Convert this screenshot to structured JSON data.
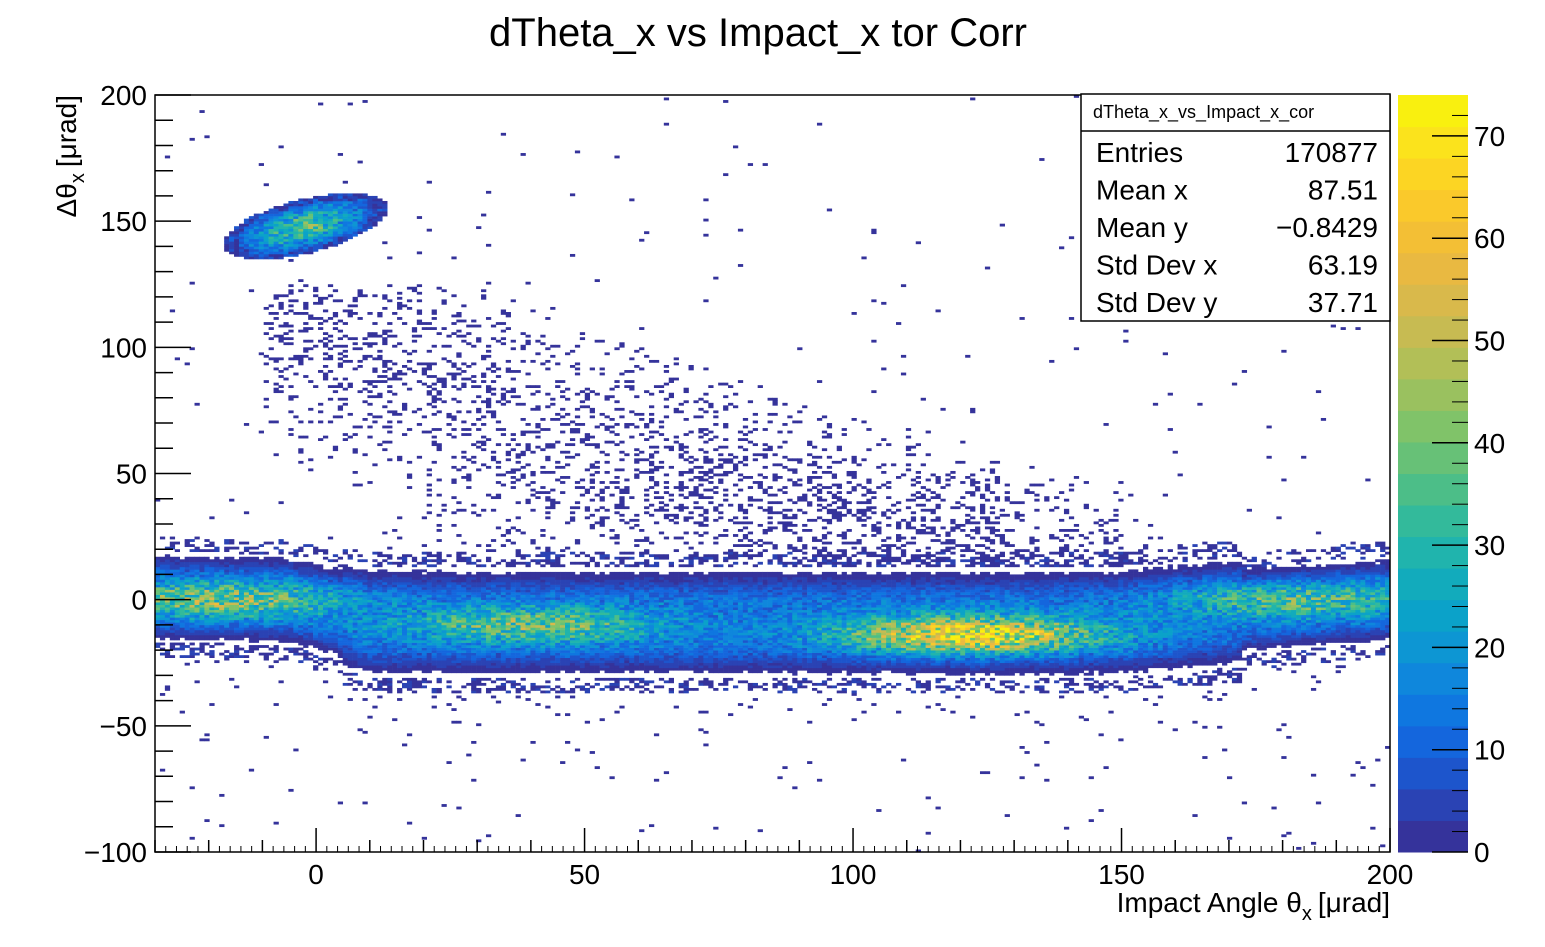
{
  "chart_data": {
    "type": "heatmap",
    "title": "dTheta_x vs Impact_x tor Corr",
    "xlabel": "Impact Angle θ",
    "xlabel_sub": "x",
    "xlabel_unit": "[μrad]",
    "ylabel": "Δθ",
    "ylabel_sub": "x",
    "ylabel_unit": "[μrad]",
    "xlim": [
      -30,
      200
    ],
    "ylim": [
      -100,
      200
    ],
    "zlim": [
      0,
      74
    ],
    "x_ticks": [
      "0",
      "50",
      "100",
      "150",
      "200"
    ],
    "x_tick_values": [
      0,
      50,
      100,
      150,
      200
    ],
    "y_ticks": [
      "−100",
      "−50",
      "0",
      "50",
      "100",
      "150",
      "200"
    ],
    "y_tick_values": [
      -100,
      -50,
      0,
      50,
      100,
      150,
      200
    ],
    "z_ticks": [
      "0",
      "10",
      "20",
      "30",
      "40",
      "50",
      "60",
      "70"
    ],
    "z_tick_values": [
      0,
      10,
      20,
      30,
      40,
      50,
      60,
      70
    ],
    "palette": [
      "#35339b",
      "#2a43b4",
      "#1d55cc",
      "#1466dd",
      "#0f77e0",
      "#0f87dc",
      "#0d96d3",
      "#0ba2c9",
      "#12abbc",
      "#20b4ad",
      "#33ba9b",
      "#4cbe88",
      "#67c177",
      "#80c369",
      "#9ac15f",
      "#b2bf57",
      "#c7bb52",
      "#d9b94b",
      "#e9b941",
      "#f3bf35",
      "#fac92b",
      "#fcd523",
      "#fbe31c",
      "#f9f00f"
    ],
    "stats": {
      "name": "dTheta_x_vs_Impact_x_cor",
      "rows": [
        {
          "label": "Entries",
          "value": "170877"
        },
        {
          "label": "Mean x",
          "value": "87.51"
        },
        {
          "label": "Mean y",
          "value": "−0.8429"
        },
        {
          "label": "Std Dev x",
          "value": "63.19"
        },
        {
          "label": "Std Dev y",
          "value": "37.71"
        }
      ]
    },
    "components": [
      {
        "kind": "band",
        "x_range": [
          -30,
          200
        ],
        "y_center": [
          [
            -30,
            1
          ],
          [
            -5,
            0
          ],
          [
            10,
            -9
          ],
          [
            150,
            -9
          ],
          [
            170,
            -5
          ],
          [
            200,
            0
          ]
        ],
        "y_sigma": 8.5,
        "peaks": [
          {
            "x": 122,
            "y": -14,
            "z": 62
          },
          {
            "x": -18,
            "y": 0,
            "z": 35
          },
          {
            "x": 40,
            "y": -10,
            "z": 32
          },
          {
            "x": 183,
            "y": 0,
            "z": 28
          }
        ],
        "base_z": 14
      },
      {
        "kind": "blob",
        "x": -2,
        "y": 148,
        "sx": 8,
        "sy": 10,
        "z": 35,
        "tilt": -1.1
      },
      {
        "kind": "diffuse",
        "from": [
          -5,
          120
        ],
        "to": [
          130,
          20
        ],
        "width": 30,
        "density": 0.25
      },
      {
        "kind": "noise",
        "density": 0.02
      }
    ],
    "grid": false,
    "legend": "top-right"
  }
}
